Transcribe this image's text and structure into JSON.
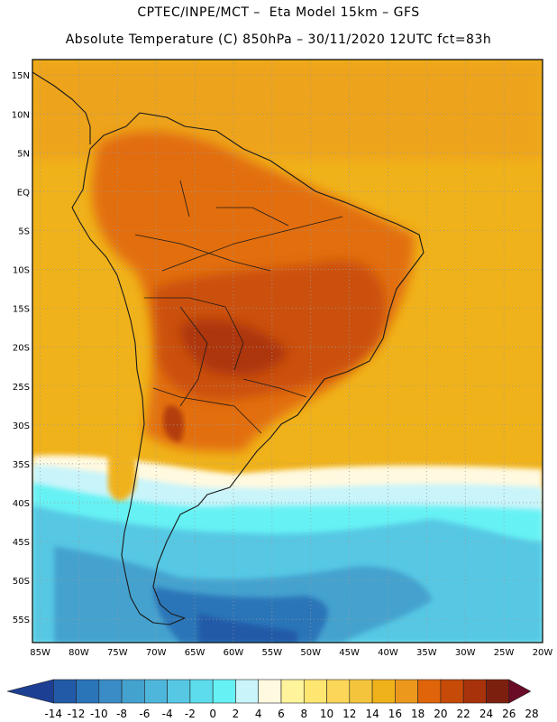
{
  "header": {
    "line1": "CPTEC/INPE/MCT –  Eta Model 15km – GFS",
    "line2": "Absolute Temperature (C) 850hPa – 30/11/2020 12UTC fct=83h"
  },
  "map": {
    "lat_range": [
      -58,
      17
    ],
    "lon_range": [
      -86,
      -20
    ],
    "lat_labels": [
      "15N",
      "10N",
      "5N",
      "EQ",
      "5S",
      "10S",
      "15S",
      "20S",
      "25S",
      "30S",
      "35S",
      "40S",
      "45S",
      "50S",
      "55S"
    ],
    "lon_labels": [
      "85W",
      "80W",
      "75W",
      "70W",
      "65W",
      "60W",
      "55W",
      "50W",
      "45W",
      "40W",
      "35W",
      "30W",
      "25W",
      "20W"
    ]
  },
  "colorbar": {
    "labels": [
      "-14",
      "-12",
      "-10",
      "-8",
      "-6",
      "-4",
      "-2",
      "0",
      "2",
      "4",
      "6",
      "8",
      "10",
      "12",
      "14",
      "16",
      "18",
      "20",
      "22",
      "24",
      "26",
      "28"
    ],
    "colors": [
      "#1c3f93",
      "#235aa8",
      "#2a74b8",
      "#3a8cc6",
      "#44a2cf",
      "#4fb6db",
      "#56c8e4",
      "#5cdcec",
      "#66f2f4",
      "#c8f4fa",
      "#fff9e0",
      "#fff39b",
      "#ffe671",
      "#fbd659",
      "#f4c53c",
      "#f0b21a",
      "#ec981c",
      "#e0640a",
      "#c64a08",
      "#a8330a",
      "#7d1f0f",
      "#6a0b28"
    ]
  }
}
